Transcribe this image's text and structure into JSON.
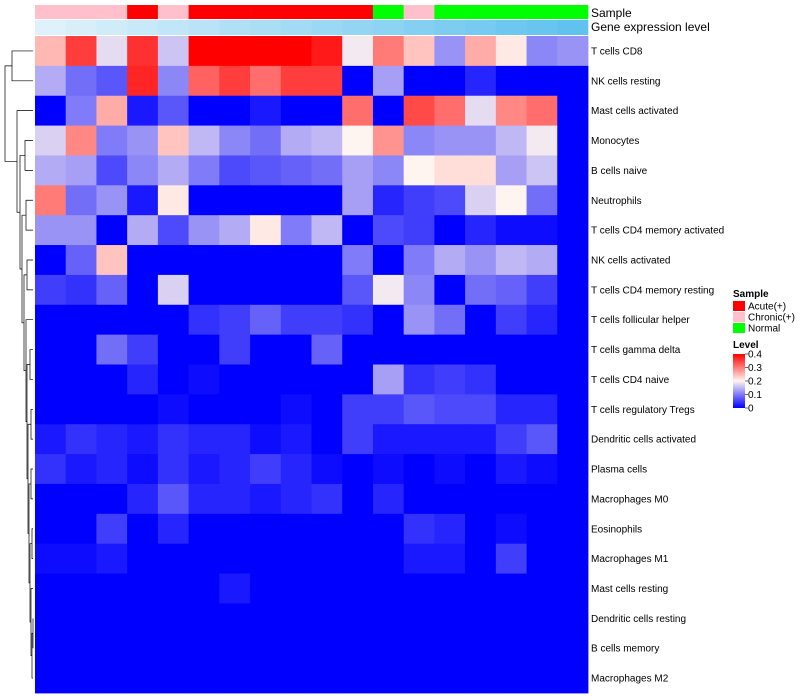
{
  "chart_data": {
    "type": "heatmap",
    "title": "",
    "rows": [
      "T cells CD8",
      "NK cells resting",
      "Mast cells activated",
      "Monocytes",
      "B cells naive",
      "Neutrophils",
      "T cells CD4 memory activated",
      "NK cells activated",
      "T cells CD4 memory resting",
      "T cells follicular helper",
      "T cells gamma delta",
      "T cells CD4 naive",
      "T cells regulatory  Tregs",
      "Dendritic cells activated",
      "Plasma cells",
      "Macrophages M0",
      "Eosinophils",
      "Macrophages M1",
      "Mast cells resting",
      "Dendritic cells resting",
      "B cells memory",
      "Macrophages M2"
    ],
    "samples": [
      "Chronic(+)",
      "Chronic(+)",
      "Chronic(+)",
      "Acute(+)",
      "Chronic(+)",
      "Acute(+)",
      "Acute(+)",
      "Acute(+)",
      "Acute(+)",
      "Acute(+)",
      "Acute(+)",
      "Normal",
      "Chronic(+)",
      "Normal",
      "Normal",
      "Normal",
      "Normal",
      "Normal"
    ],
    "gene_expression_level": [
      0.05,
      0.1,
      0.16,
      0.22,
      0.27,
      0.32,
      0.38,
      0.43,
      0.48,
      0.54,
      0.59,
      0.64,
      0.7,
      0.75,
      0.8,
      0.86,
      0.91,
      0.96
    ],
    "values": [
      [
        0.25,
        0.35,
        0.18,
        0.36,
        0.16,
        0.4,
        0.4,
        0.4,
        0.4,
        0.38,
        0.19,
        0.3,
        0.24,
        0.12,
        0.26,
        0.21,
        0.11,
        0.12
      ],
      [
        0.14,
        0.09,
        0.07,
        0.37,
        0.11,
        0.32,
        0.35,
        0.31,
        0.35,
        0.35,
        0.0,
        0.13,
        0.0,
        0.0,
        0.03,
        0.0,
        0.0,
        0.0
      ],
      [
        0.0,
        0.1,
        0.26,
        0.02,
        0.07,
        0.0,
        0.0,
        0.02,
        0.0,
        0.0,
        0.31,
        0.0,
        0.34,
        0.31,
        0.18,
        0.29,
        0.31,
        0.0
      ],
      [
        0.17,
        0.29,
        0.1,
        0.12,
        0.24,
        0.15,
        0.11,
        0.09,
        0.14,
        0.15,
        0.2,
        0.28,
        0.11,
        0.12,
        0.12,
        0.15,
        0.19,
        0.0
      ],
      [
        0.14,
        0.13,
        0.06,
        0.11,
        0.14,
        0.1,
        0.06,
        0.07,
        0.08,
        0.09,
        0.13,
        0.11,
        0.2,
        0.22,
        0.22,
        0.13,
        0.16,
        0.0
      ],
      [
        0.3,
        0.09,
        0.12,
        0.02,
        0.21,
        0.0,
        0.0,
        0.0,
        0.0,
        0.0,
        0.13,
        0.03,
        0.05,
        0.06,
        0.17,
        0.2,
        0.09,
        0.0
      ],
      [
        0.12,
        0.12,
        0.0,
        0.14,
        0.06,
        0.12,
        0.14,
        0.21,
        0.1,
        0.15,
        0.0,
        0.06,
        0.05,
        0.0,
        0.03,
        0.01,
        0.01,
        0.0
      ],
      [
        0.0,
        0.08,
        0.24,
        0.0,
        0.0,
        0.0,
        0.0,
        0.0,
        0.0,
        0.0,
        0.1,
        0.0,
        0.1,
        0.14,
        0.12,
        0.15,
        0.14,
        0.0
      ],
      [
        0.05,
        0.04,
        0.08,
        0.0,
        0.17,
        0.0,
        0.0,
        0.0,
        0.0,
        0.0,
        0.07,
        0.19,
        0.11,
        0.0,
        0.09,
        0.08,
        0.05,
        0.0
      ],
      [
        0.0,
        0.0,
        0.0,
        0.0,
        0.0,
        0.04,
        0.05,
        0.08,
        0.05,
        0.05,
        0.04,
        0.0,
        0.12,
        0.09,
        0.0,
        0.05,
        0.03,
        0.0
      ],
      [
        0.0,
        0.0,
        0.09,
        0.05,
        0.0,
        0.0,
        0.05,
        0.0,
        0.0,
        0.08,
        0.0,
        0.0,
        0.0,
        0.0,
        0.0,
        0.0,
        0.0,
        0.0
      ],
      [
        0.0,
        0.0,
        0.0,
        0.03,
        0.0,
        0.01,
        0.0,
        0.0,
        0.0,
        0.0,
        0.0,
        0.13,
        0.04,
        0.05,
        0.04,
        0.0,
        0.0,
        0.0
      ],
      [
        0.0,
        0.0,
        0.0,
        0.0,
        0.01,
        0.0,
        0.0,
        0.0,
        0.01,
        0.0,
        0.05,
        0.05,
        0.07,
        0.06,
        0.06,
        0.03,
        0.03,
        0.0
      ],
      [
        0.02,
        0.04,
        0.03,
        0.02,
        0.04,
        0.03,
        0.03,
        0.01,
        0.02,
        0.0,
        0.05,
        0.02,
        0.02,
        0.02,
        0.02,
        0.05,
        0.07,
        0.0
      ],
      [
        0.04,
        0.02,
        0.03,
        0.01,
        0.04,
        0.02,
        0.03,
        0.05,
        0.03,
        0.01,
        0.0,
        0.01,
        0.0,
        0.01,
        0.0,
        0.02,
        0.01,
        0.0
      ],
      [
        0.0,
        0.0,
        0.0,
        0.03,
        0.07,
        0.03,
        0.03,
        0.02,
        0.03,
        0.04,
        0.0,
        0.03,
        0.0,
        0.0,
        0.0,
        0.0,
        0.0,
        0.0
      ],
      [
        0.0,
        0.0,
        0.05,
        0.0,
        0.03,
        0.0,
        0.0,
        0.0,
        0.0,
        0.0,
        0.0,
        0.0,
        0.04,
        0.03,
        0.0,
        0.01,
        0.0,
        0.0
      ],
      [
        0.01,
        0.01,
        0.02,
        0.0,
        0.0,
        0.0,
        0.0,
        0.0,
        0.0,
        0.0,
        0.0,
        0.0,
        0.02,
        0.02,
        0.0,
        0.05,
        0.0,
        0.0
      ],
      [
        0.0,
        0.0,
        0.0,
        0.0,
        0.0,
        0.0,
        0.02,
        0.0,
        0.0,
        0.0,
        0.0,
        0.0,
        0.0,
        0.0,
        0.0,
        0.0,
        0.0,
        0.0
      ],
      [
        0.0,
        0.0,
        0.0,
        0.0,
        0.0,
        0.0,
        0.0,
        0.0,
        0.0,
        0.0,
        0.0,
        0.0,
        0.0,
        0.0,
        0.0,
        0.0,
        0.0,
        0.0
      ],
      [
        0.0,
        0.0,
        0.0,
        0.0,
        0.0,
        0.0,
        0.0,
        0.0,
        0.0,
        0.0,
        0.0,
        0.0,
        0.0,
        0.0,
        0.0,
        0.0,
        0.0,
        0.0
      ],
      [
        0.0,
        0.0,
        0.0,
        0.0,
        0.0,
        0.0,
        0.0,
        0.0,
        0.0,
        0.0,
        0.0,
        0.0,
        0.0,
        0.0,
        0.0,
        0.0,
        0.0,
        0.0
      ]
    ],
    "annotation_labels": {
      "sample": "Sample",
      "gene_expression": "Gene expression level"
    },
    "legend": {
      "sample_title": "Sample",
      "sample_entries": [
        {
          "label": "Acute(+)",
          "color": "#ff0000"
        },
        {
          "label": "Chronic(+)",
          "color": "#ffc0cb"
        },
        {
          "label": "Normal",
          "color": "#00ff00"
        }
      ],
      "level_title": "Level",
      "level_ticks": [
        0.4,
        0.3,
        0.2,
        0.1,
        0
      ],
      "level_range": [
        0,
        0.4
      ],
      "placement": "right"
    },
    "colors": {
      "low": "#0000ff",
      "mid": "#fff5f0",
      "high": "#ff0000",
      "expression_low": "#e6f4fb",
      "expression_high": "#5bc0ee"
    },
    "row_dendrogram": true
  }
}
